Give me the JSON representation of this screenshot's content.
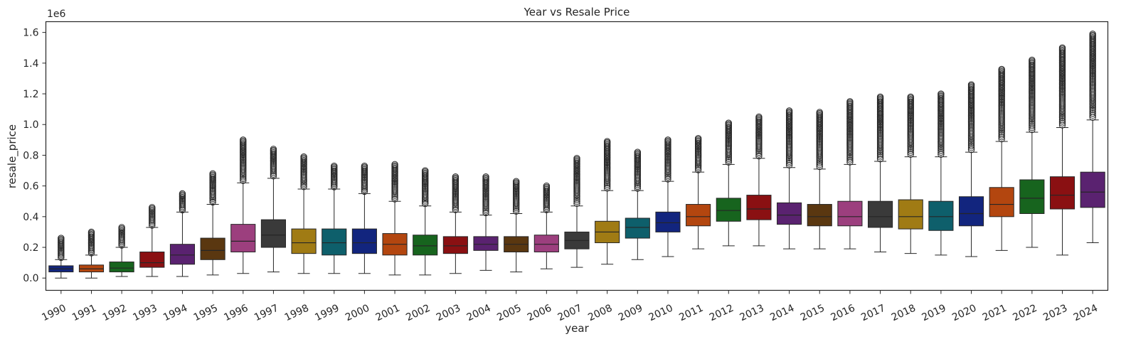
{
  "chart_data": {
    "type": "box",
    "title": "Year vs Resale Price",
    "xlabel": "year",
    "ylabel": "resale_price",
    "y_offset_label": "1e6",
    "ylim": [
      -0.08,
      1.67
    ],
    "y_ticks": [
      0.0,
      0.2,
      0.4,
      0.6,
      0.8,
      1.0,
      1.2,
      1.4,
      1.6
    ],
    "y_tick_labels": [
      "0.0",
      "0.2",
      "0.4",
      "0.6",
      "0.8",
      "1.0",
      "1.2",
      "1.4",
      "1.6"
    ],
    "x_tick_rotation_deg": -25,
    "grid": false,
    "legend": "none",
    "categories": [
      "1990",
      "1991",
      "1992",
      "1993",
      "1994",
      "1995",
      "1996",
      "1997",
      "1998",
      "1999",
      "2000",
      "2001",
      "2002",
      "2003",
      "2004",
      "2005",
      "2006",
      "2007",
      "2008",
      "2009",
      "2010",
      "2011",
      "2012",
      "2013",
      "2014",
      "2015",
      "2016",
      "2017",
      "2018",
      "2019",
      "2020",
      "2021",
      "2022",
      "2023",
      "2024"
    ],
    "palette": [
      "#12257e",
      "#b3460f",
      "#17641e",
      "#8a1012",
      "#5a2270",
      "#5a3710",
      "#9c3f7e",
      "#3a3a3a",
      "#a07b14",
      "#0e5f6b"
    ],
    "boxes": [
      {
        "q1": 0.04,
        "median": 0.06,
        "q3": 0.08,
        "whisker_low": 0.0,
        "whisker_high": 0.12,
        "outlier_max": 0.26
      },
      {
        "q1": 0.04,
        "median": 0.06,
        "q3": 0.085,
        "whisker_low": 0.0,
        "whisker_high": 0.15,
        "outlier_max": 0.3
      },
      {
        "q1": 0.04,
        "median": 0.065,
        "q3": 0.105,
        "whisker_low": 0.01,
        "whisker_high": 0.2,
        "outlier_max": 0.33
      },
      {
        "q1": 0.07,
        "median": 0.1,
        "q3": 0.17,
        "whisker_low": 0.01,
        "whisker_high": 0.33,
        "outlier_max": 0.46
      },
      {
        "q1": 0.09,
        "median": 0.15,
        "q3": 0.22,
        "whisker_low": 0.01,
        "whisker_high": 0.43,
        "outlier_max": 0.55
      },
      {
        "q1": 0.12,
        "median": 0.18,
        "q3": 0.26,
        "whisker_low": 0.02,
        "whisker_high": 0.48,
        "outlier_max": 0.68
      },
      {
        "q1": 0.17,
        "median": 0.24,
        "q3": 0.35,
        "whisker_low": 0.03,
        "whisker_high": 0.62,
        "outlier_max": 0.9
      },
      {
        "q1": 0.2,
        "median": 0.28,
        "q3": 0.38,
        "whisker_low": 0.04,
        "whisker_high": 0.65,
        "outlier_max": 0.84
      },
      {
        "q1": 0.16,
        "median": 0.23,
        "q3": 0.32,
        "whisker_low": 0.03,
        "whisker_high": 0.58,
        "outlier_max": 0.79
      },
      {
        "q1": 0.15,
        "median": 0.23,
        "q3": 0.32,
        "whisker_low": 0.03,
        "whisker_high": 0.58,
        "outlier_max": 0.73
      },
      {
        "q1": 0.16,
        "median": 0.23,
        "q3": 0.32,
        "whisker_low": 0.03,
        "whisker_high": 0.55,
        "outlier_max": 0.73
      },
      {
        "q1": 0.15,
        "median": 0.22,
        "q3": 0.29,
        "whisker_low": 0.02,
        "whisker_high": 0.5,
        "outlier_max": 0.74
      },
      {
        "q1": 0.15,
        "median": 0.21,
        "q3": 0.28,
        "whisker_low": 0.02,
        "whisker_high": 0.47,
        "outlier_max": 0.7
      },
      {
        "q1": 0.16,
        "median": 0.21,
        "q3": 0.27,
        "whisker_low": 0.03,
        "whisker_high": 0.43,
        "outlier_max": 0.66
      },
      {
        "q1": 0.18,
        "median": 0.22,
        "q3": 0.27,
        "whisker_low": 0.05,
        "whisker_high": 0.41,
        "outlier_max": 0.66
      },
      {
        "q1": 0.17,
        "median": 0.22,
        "q3": 0.27,
        "whisker_low": 0.04,
        "whisker_high": 0.42,
        "outlier_max": 0.63
      },
      {
        "q1": 0.17,
        "median": 0.22,
        "q3": 0.28,
        "whisker_low": 0.06,
        "whisker_high": 0.43,
        "outlier_max": 0.6
      },
      {
        "q1": 0.19,
        "median": 0.245,
        "q3": 0.3,
        "whisker_low": 0.07,
        "whisker_high": 0.47,
        "outlier_max": 0.78
      },
      {
        "q1": 0.23,
        "median": 0.3,
        "q3": 0.37,
        "whisker_low": 0.09,
        "whisker_high": 0.57,
        "outlier_max": 0.89
      },
      {
        "q1": 0.26,
        "median": 0.33,
        "q3": 0.39,
        "whisker_low": 0.12,
        "whisker_high": 0.57,
        "outlier_max": 0.82
      },
      {
        "q1": 0.3,
        "median": 0.36,
        "q3": 0.43,
        "whisker_low": 0.14,
        "whisker_high": 0.63,
        "outlier_max": 0.9
      },
      {
        "q1": 0.34,
        "median": 0.4,
        "q3": 0.48,
        "whisker_low": 0.19,
        "whisker_high": 0.69,
        "outlier_max": 0.91
      },
      {
        "q1": 0.37,
        "median": 0.44,
        "q3": 0.52,
        "whisker_low": 0.21,
        "whisker_high": 0.74,
        "outlier_max": 1.01
      },
      {
        "q1": 0.38,
        "median": 0.45,
        "q3": 0.54,
        "whisker_low": 0.21,
        "whisker_high": 0.78,
        "outlier_max": 1.05
      },
      {
        "q1": 0.35,
        "median": 0.41,
        "q3": 0.49,
        "whisker_low": 0.19,
        "whisker_high": 0.72,
        "outlier_max": 1.09
      },
      {
        "q1": 0.34,
        "median": 0.4,
        "q3": 0.48,
        "whisker_low": 0.19,
        "whisker_high": 0.71,
        "outlier_max": 1.08
      },
      {
        "q1": 0.34,
        "median": 0.4,
        "q3": 0.5,
        "whisker_low": 0.19,
        "whisker_high": 0.74,
        "outlier_max": 1.15
      },
      {
        "q1": 0.33,
        "median": 0.4,
        "q3": 0.5,
        "whisker_low": 0.17,
        "whisker_high": 0.76,
        "outlier_max": 1.18
      },
      {
        "q1": 0.32,
        "median": 0.4,
        "q3": 0.51,
        "whisker_low": 0.16,
        "whisker_high": 0.79,
        "outlier_max": 1.18
      },
      {
        "q1": 0.31,
        "median": 0.4,
        "q3": 0.5,
        "whisker_low": 0.15,
        "whisker_high": 0.79,
        "outlier_max": 1.2
      },
      {
        "q1": 0.34,
        "median": 0.42,
        "q3": 0.53,
        "whisker_low": 0.14,
        "whisker_high": 0.82,
        "outlier_max": 1.26
      },
      {
        "q1": 0.4,
        "median": 0.48,
        "q3": 0.59,
        "whisker_low": 0.18,
        "whisker_high": 0.89,
        "outlier_max": 1.36
      },
      {
        "q1": 0.42,
        "median": 0.52,
        "q3": 0.64,
        "whisker_low": 0.2,
        "whisker_high": 0.95,
        "outlier_max": 1.42
      },
      {
        "q1": 0.45,
        "median": 0.54,
        "q3": 0.66,
        "whisker_low": 0.15,
        "whisker_high": 0.98,
        "outlier_max": 1.5
      },
      {
        "q1": 0.46,
        "median": 0.56,
        "q3": 0.69,
        "whisker_low": 0.23,
        "whisker_high": 1.03,
        "outlier_max": 1.59
      }
    ]
  }
}
